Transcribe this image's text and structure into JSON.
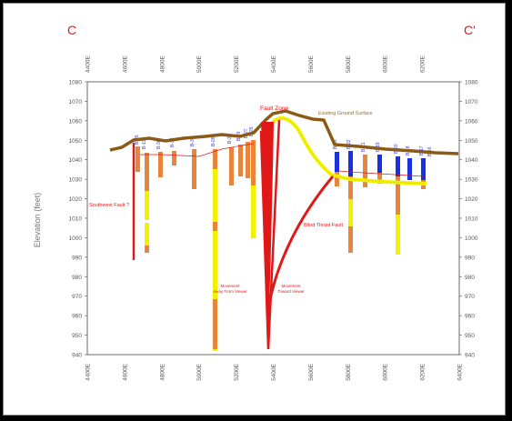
{
  "section": {
    "left_label": "C",
    "right_label": "C'"
  },
  "axes": {
    "y_label": "Elevation (feet)",
    "y_ticks": [
      "1080",
      "1070",
      "1060",
      "1050",
      "1040",
      "1030",
      "1020",
      "1010",
      "1000",
      "990",
      "980",
      "970",
      "960",
      "950",
      "940"
    ],
    "x_ticks": [
      "4400E",
      "4600E",
      "4800E",
      "5000E",
      "5200E",
      "5400E",
      "5600E",
      "5800E",
      "6000E",
      "6200E"
    ],
    "x_bottom_ticks": [
      "4400E",
      "4600E",
      "4800E",
      "5000E",
      "5200E",
      "5400E",
      "5600E",
      "5800E",
      "6000E",
      "6200E",
      "6400E"
    ]
  },
  "annotations": {
    "fault_zone": "Fault Zone",
    "ground_surface": "Existing Ground Surface",
    "southwest_fault": "Southwest Fault ?",
    "blind_thrust": "Blind Thrust Fault",
    "movement_away": [
      "Movement",
      "Away From Viewer"
    ],
    "movement_toward": [
      "Movement",
      "Toward Viewer"
    ]
  },
  "boreholes": [
    {
      "id": "B-35"
    },
    {
      "id": "B-13"
    },
    {
      "id": "B-36"
    },
    {
      "id": "B-33"
    },
    {
      "id": "B-30"
    },
    {
      "id": "B-26"
    },
    {
      "id": "B-28"
    },
    {
      "id": "B-29"
    },
    {
      "id": "B-27"
    },
    {
      "id": "B-25"
    },
    {
      "id": "B-23"
    },
    {
      "id": "B-22"
    },
    {
      "id": "B-21"
    },
    {
      "id": "B-19"
    },
    {
      "id": "B-20"
    },
    {
      "id": "B-18"
    },
    {
      "id": "B-17"
    },
    {
      "id": "B-16"
    }
  ],
  "colors": {
    "ground": "#8b5a16",
    "fault": "#e01818",
    "yellow_layer": "#f2f200",
    "orange": "#e8853a",
    "blue": "#1830e0",
    "label_red": "#e01818",
    "label_blue": "#3a3adf"
  }
}
